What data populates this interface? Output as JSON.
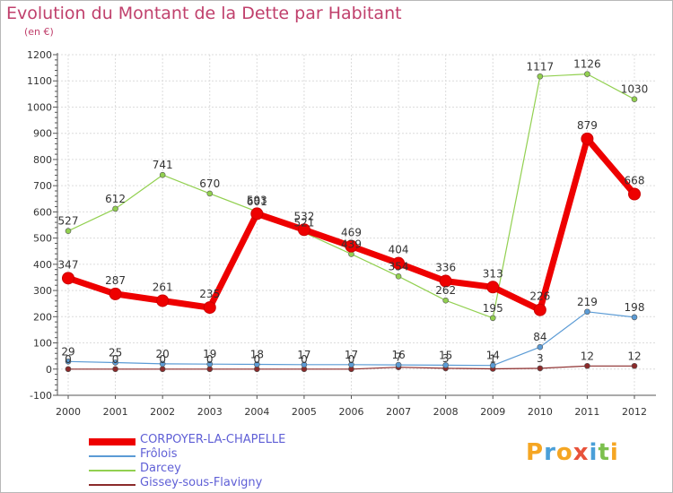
{
  "header": {
    "title": "Evolution du Montant de la Dette par Habitant",
    "unit": "(en €)"
  },
  "logo": {
    "letters": [
      "P",
      "r",
      "o",
      "x",
      "i",
      "t",
      "i"
    ],
    "colors": [
      "#f5a623",
      "#4a9fd8",
      "#f5a623",
      "#e8523a",
      "#4a9fd8",
      "#7cc04e",
      "#f5a623"
    ]
  },
  "chart_data": {
    "type": "line",
    "title": "Evolution du Montant de la Dette par Habitant",
    "ylabel": "(en €)",
    "xlabel": "",
    "x": [
      "2000",
      "2001",
      "2002",
      "2003",
      "2004",
      "2005",
      "2006",
      "2007",
      "2008",
      "2009",
      "2010",
      "2011",
      "2012"
    ],
    "ylim": [
      -100,
      1200
    ],
    "yticks": [
      "-100",
      "0",
      "100",
      "200",
      "300",
      "400",
      "500",
      "600",
      "700",
      "800",
      "900",
      "1000",
      "1100",
      "1200"
    ],
    "grid": true,
    "legend_position": "bottom-left",
    "series": [
      {
        "name": "CORPOYER-LA-CHAPELLE",
        "color": "#ee0000",
        "values": [
          347,
          287,
          261,
          235,
          593,
          532,
          469,
          404,
          336,
          313,
          226,
          879,
          668
        ],
        "labels": [
          "347",
          "287",
          "261",
          "235",
          "593",
          "532",
          "469",
          "404",
          "336",
          "313",
          "226",
          "879",
          "668"
        ]
      },
      {
        "name": "Frôlois",
        "color": "#5b9bd5",
        "values": [
          29,
          25,
          20,
          19,
          18,
          17,
          17,
          16,
          15,
          14,
          84,
          219,
          198
        ],
        "labels": [
          "29",
          "25",
          "20",
          "19",
          "18",
          "17",
          "17",
          "16",
          "15",
          "14",
          "84",
          "219",
          "198"
        ]
      },
      {
        "name": "Darcey",
        "color": "#92d050",
        "values": [
          527,
          612,
          741,
          670,
          601,
          521,
          439,
          354,
          262,
          195,
          1117,
          1126,
          1030
        ],
        "labels": [
          "527",
          "612",
          "741",
          "670",
          "601",
          "521",
          "439",
          "354",
          "262",
          "195",
          "1117",
          "1126",
          "1030"
        ]
      },
      {
        "name": "Gissey-sous-Flavigny",
        "color": "#8b2a2a",
        "values": [
          0,
          0,
          0,
          0,
          0,
          0,
          0,
          7,
          3,
          1,
          3,
          12,
          12
        ],
        "labels": [
          "0",
          "0",
          "0",
          "0",
          "0",
          "0",
          "0",
          "7",
          "3",
          "1",
          "3",
          "12",
          "12"
        ]
      }
    ]
  }
}
